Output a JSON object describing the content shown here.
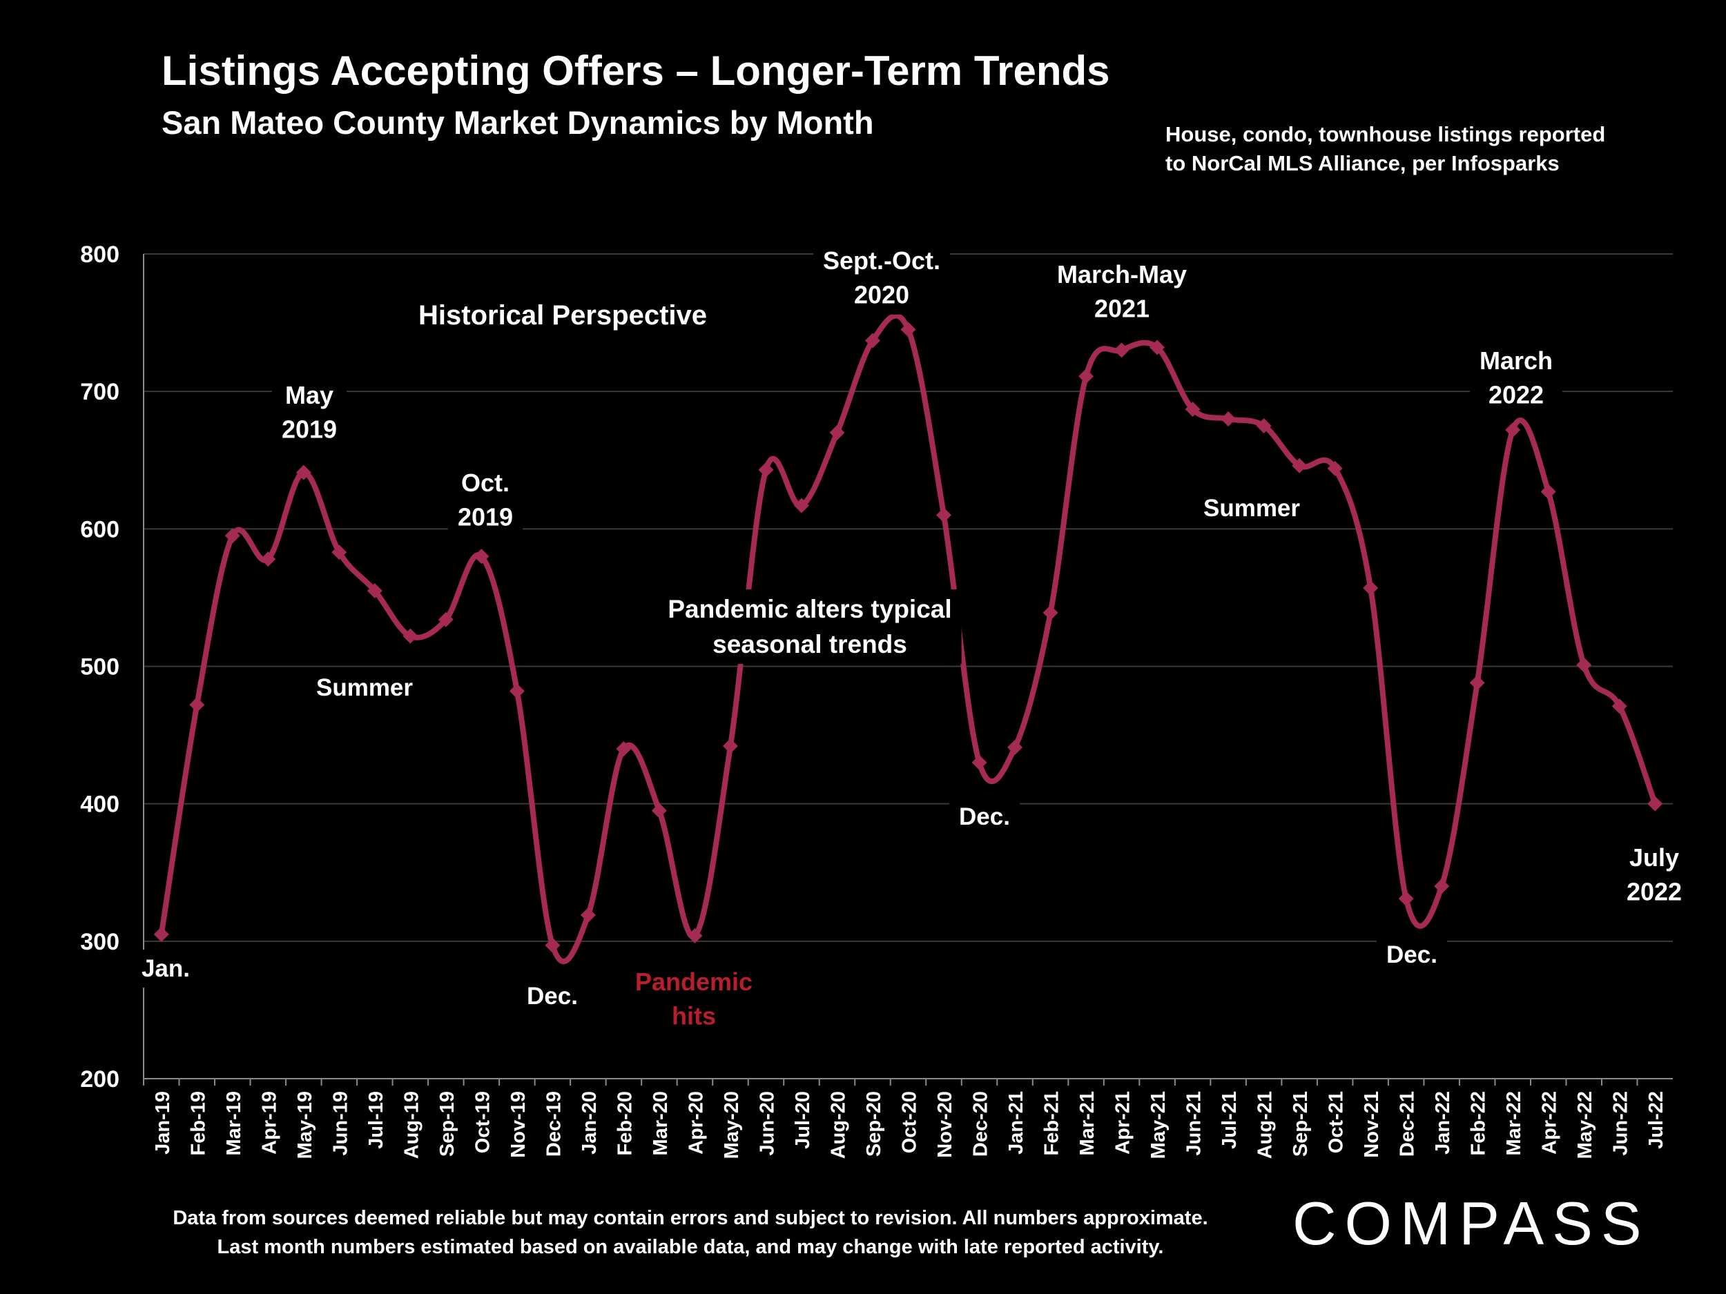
{
  "header": {
    "title": "Listings Accepting Offers – Longer-Term Trends",
    "subtitle": "San Mateo County Market Dynamics by Month",
    "source_line1": "House, condo, townhouse listings reported",
    "source_line2": "to NorCal MLS Alliance, per Infosparks"
  },
  "footer": {
    "note_line1": "Data from sources deemed reliable but may contain errors and subject to revision. All numbers approximate.",
    "note_line2": "Last month numbers estimated based on available data, and may change with late reported activity.",
    "logo_text": "COMPASS"
  },
  "chart_data": {
    "type": "line",
    "title": "Listings Accepting Offers – Longer-Term Trends",
    "xlabel": "",
    "ylabel": "",
    "ylim": [
      200,
      800
    ],
    "yticks": [
      200,
      300,
      400,
      500,
      600,
      700,
      800
    ],
    "grid": true,
    "line_color": "#A52A56",
    "categories": [
      "Jan-19",
      "Feb-19",
      "Mar-19",
      "Apr-19",
      "May-19",
      "Jun-19",
      "Jul-19",
      "Aug-19",
      "Sep-19",
      "Oct-19",
      "Nov-19",
      "Dec-19",
      "Jan-20",
      "Feb-20",
      "Mar-20",
      "Apr-20",
      "May-20",
      "Jun-20",
      "Jul-20",
      "Aug-20",
      "Sep-20",
      "Oct-20",
      "Nov-20",
      "Dec-20",
      "Jan-21",
      "Feb-21",
      "Mar-21",
      "Apr-21",
      "May-21",
      "Jun-21",
      "Jul-21",
      "Aug-21",
      "Sep-21",
      "Oct-21",
      "Nov-21",
      "Dec-21",
      "Jan-22",
      "Feb-22",
      "Mar-22",
      "Apr-22",
      "May-22",
      "Jun-22",
      "Jul-22"
    ],
    "values": [
      305,
      472,
      595,
      578,
      641,
      583,
      555,
      522,
      534,
      580,
      482,
      297,
      319,
      440,
      395,
      304,
      442,
      643,
      617,
      670,
      737,
      745,
      610,
      430,
      441,
      539,
      711,
      730,
      732,
      687,
      680,
      675,
      646,
      644,
      557,
      331,
      340,
      488,
      672,
      627,
      501,
      471,
      400
    ],
    "annotations": [
      {
        "text": "Historical Perspective",
        "color": "#ffffff"
      },
      {
        "text": "Jan.",
        "color": "#ffffff"
      },
      {
        "text": "May\n2019",
        "color": "#ffffff"
      },
      {
        "text": "Summer",
        "color": "#ffffff"
      },
      {
        "text": "Oct.\n2019",
        "color": "#ffffff"
      },
      {
        "text": "Dec.",
        "color": "#ffffff"
      },
      {
        "text": "Pandemic\nhits",
        "color": "#B81E2C"
      },
      {
        "text": "Pandemic alters typical\nseasonal trends",
        "color": "#ffffff"
      },
      {
        "text": "Sept.-Oct.\n2020",
        "color": "#ffffff"
      },
      {
        "text": "Dec.",
        "color": "#ffffff"
      },
      {
        "text": "March-May\n2021",
        "color": "#ffffff"
      },
      {
        "text": "Summer",
        "color": "#ffffff"
      },
      {
        "text": "Dec.",
        "color": "#ffffff"
      },
      {
        "text": "March\n2022",
        "color": "#ffffff"
      },
      {
        "text": "July\n2022",
        "color": "#ffffff"
      }
    ]
  }
}
